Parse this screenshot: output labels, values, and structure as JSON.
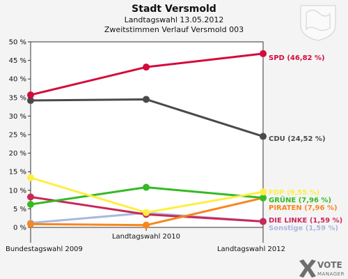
{
  "chart_data": {
    "type": "line",
    "title": "Stadt Versmold",
    "subtitle_1": "Landtagswahl 13.05.2012",
    "subtitle_2": "Zweitstimmen Verlauf Versmold 003",
    "categories": [
      "Bundestagswahl 2009",
      "Landtagswahl 2010",
      "Landtagswahl 2012"
    ],
    "ylim": [
      0,
      50
    ],
    "yticks": [
      "0 %",
      "5 %",
      "10 %",
      "15 %",
      "20 %",
      "25 %",
      "30 %",
      "35 %",
      "40 %",
      "45 %",
      "50 %"
    ],
    "ytick_values": [
      0,
      5,
      10,
      15,
      20,
      25,
      30,
      35,
      40,
      45,
      50
    ],
    "grid": false,
    "series": [
      {
        "name": "SPD",
        "label": "SPD (46,82 %)",
        "color": "#d40a3a",
        "values": [
          35.7,
          43.2,
          46.82
        ]
      },
      {
        "name": "CDU",
        "label": "CDU (24,52 %)",
        "color": "#4a4a4a",
        "values": [
          34.2,
          34.5,
          24.52
        ]
      },
      {
        "name": "FDP",
        "label": "FDP (9,55 %)",
        "color": "#ffee40",
        "values": [
          13.4,
          4.0,
          9.55
        ]
      },
      {
        "name": "GRÜNE",
        "label": "GRÜNE (7,96 %)",
        "color": "#33bb22",
        "values": [
          6.2,
          10.8,
          7.96
        ]
      },
      {
        "name": "PIRATEN",
        "label": "PIRATEN (7,96 %)",
        "color": "#f7861c",
        "values": [
          0.9,
          0.6,
          7.96
        ]
      },
      {
        "name": "DIE LINKE",
        "label": "DIE LINKE (1,59 %)",
        "color": "#c8285a",
        "values": [
          8.2,
          3.5,
          1.59
        ]
      },
      {
        "name": "Sonstige",
        "label": "Sonstige (1,59 %)",
        "color": "#a9b8de",
        "values": [
          1.2,
          3.9,
          1.59
        ]
      }
    ]
  },
  "branding": {
    "logo_text_1": "VOTE",
    "logo_text_2": "MANAGER"
  }
}
